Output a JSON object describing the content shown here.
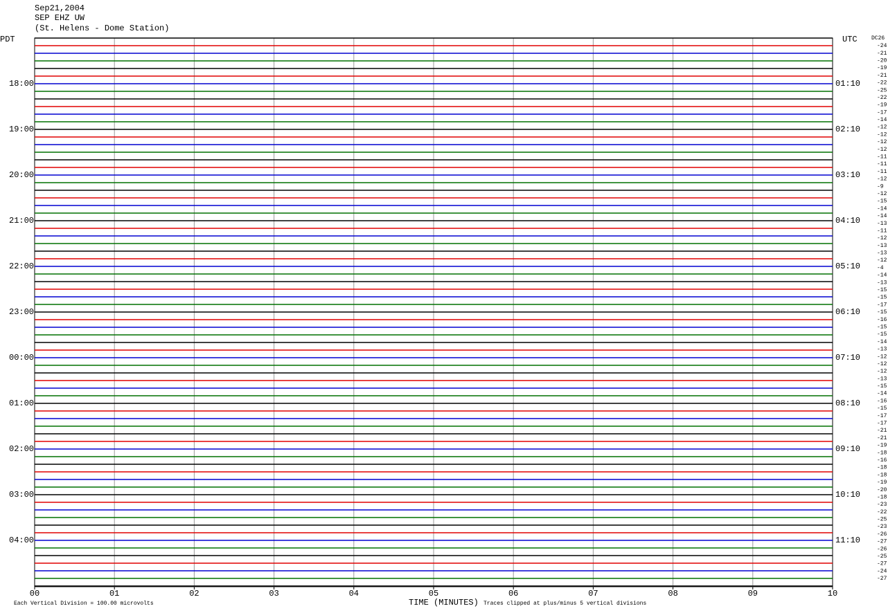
{
  "header": {
    "lines": [
      "Sep21,2004",
      "SEP EHZ UW",
      "(St. Helens - Dome Station)"
    ]
  },
  "left_axis": {
    "title": "PDT",
    "labels": [
      "18:00",
      "19:00",
      "20:00",
      "21:00",
      "22:00",
      "23:00",
      "00:00",
      "01:00",
      "02:00",
      "03:00",
      "04:00"
    ]
  },
  "right_axis": {
    "title": "UTC",
    "labels": [
      "01:10",
      "02:10",
      "03:10",
      "04:10",
      "05:10",
      "06:10",
      "07:10",
      "08:10",
      "09:10",
      "10:10",
      "11:10"
    ]
  },
  "dc_column": {
    "title": "DC26",
    "offsets": [
      -24,
      -21,
      -20,
      -19,
      -21,
      -22,
      -25,
      -22,
      -19,
      -17,
      -14,
      -12,
      -12,
      -12,
      -12,
      -11,
      -11,
      -11,
      -12,
      -9,
      -12,
      -15,
      -14,
      -14,
      -13,
      -11,
      -12,
      -13,
      -13,
      -12,
      -4,
      -14,
      -13,
      -15,
      -15,
      -17,
      -15,
      -16,
      -15,
      -15,
      -14,
      -13,
      -12,
      -12,
      -12,
      -13,
      -15,
      -14,
      -16,
      -15,
      -17,
      -17,
      -21,
      -21,
      -19,
      -18,
      -16,
      -18,
      -18,
      -19,
      -20,
      -18,
      -23,
      -22,
      -25,
      -23,
      -26,
      -27,
      -26,
      -25,
      -27,
      -24,
      -27
    ]
  },
  "x_axis": {
    "label": "TIME (MINUTES)",
    "ticks": [
      "00",
      "01",
      "02",
      "03",
      "04",
      "05",
      "06",
      "07",
      "08",
      "09",
      "10"
    ]
  },
  "footer": {
    "scale_note": "Each Vertical Division =  100.00 microvolts",
    "clip_note": "Traces clipped at plus/minus 5 vertical divisions"
  },
  "trace_colors": [
    "#000000",
    "#e00000",
    "#0000d0",
    "#007000"
  ]
}
